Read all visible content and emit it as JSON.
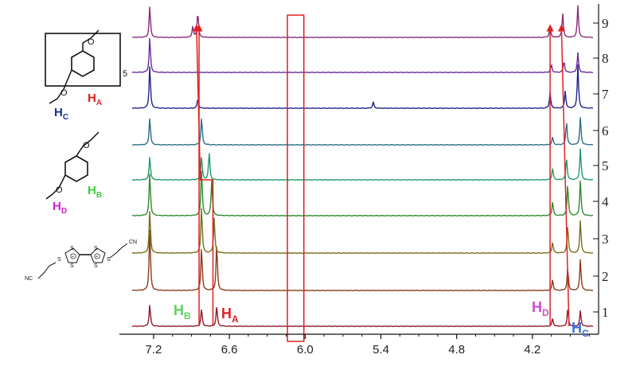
{
  "chart_data": {
    "type": "line",
    "title": "",
    "xlabel": "",
    "ylabel": "",
    "x_axis": {
      "reversed": true,
      "xlim": [
        7.37,
        3.72
      ],
      "ticks": [
        7.2,
        6.6,
        6.0,
        5.4,
        4.8,
        4.2
      ],
      "tick_labels": [
        "7.2",
        "6.6",
        "6.0",
        "5.4",
        "4.8",
        "4.2"
      ]
    },
    "grid": false,
    "trace_numbers": [
      "1",
      "2",
      "3",
      "4",
      "5",
      "6",
      "7",
      "8",
      "9"
    ],
    "series": [
      {
        "color": "#8b1a2b",
        "peaks": [
          [
            7.23,
            28
          ],
          [
            6.82,
            22
          ],
          [
            6.7,
            26
          ],
          [
            4.04,
            10
          ],
          [
            3.92,
            22
          ],
          [
            3.82,
            20
          ]
        ]
      },
      {
        "color": "#8b3a1a",
        "peaks": [
          [
            7.23,
            80
          ],
          [
            6.82,
            55
          ],
          [
            6.7,
            60
          ],
          [
            4.04,
            14
          ],
          [
            3.92,
            28
          ],
          [
            3.82,
            40
          ]
        ]
      },
      {
        "color": "#7a6d1e",
        "peaks": [
          [
            7.23,
            55
          ],
          [
            6.82,
            60
          ],
          [
            6.72,
            45
          ],
          [
            4.04,
            14
          ],
          [
            3.92,
            35
          ],
          [
            3.82,
            42
          ]
        ]
      },
      {
        "color": "#2e8a2e",
        "peaks": [
          [
            7.23,
            55
          ],
          [
            6.82,
            60
          ],
          [
            6.74,
            45
          ],
          [
            4.04,
            18
          ],
          [
            3.92,
            40
          ],
          [
            3.82,
            45
          ]
        ]
      },
      {
        "color": "#1f9a6a",
        "peaks": [
          [
            7.23,
            30
          ],
          [
            6.82,
            30
          ],
          [
            6.76,
            35
          ],
          [
            4.04,
            15
          ],
          [
            3.93,
            28
          ],
          [
            3.82,
            40
          ]
        ]
      },
      {
        "color": "#2a6e8a",
        "peaks": [
          [
            7.23,
            35
          ],
          [
            6.82,
            35
          ],
          [
            4.04,
            10
          ],
          [
            3.93,
            30
          ],
          [
            3.82,
            35
          ]
        ]
      },
      {
        "color": "#23238a",
        "peaks": [
          [
            7.23,
            55
          ],
          [
            6.85,
            12
          ],
          [
            5.46,
            8
          ],
          [
            4.06,
            20
          ],
          [
            3.94,
            22
          ],
          [
            3.84,
            55
          ]
        ]
      },
      {
        "color": "#6a2a9a",
        "peaks": [
          [
            7.23,
            45
          ],
          [
            4.05,
            10
          ],
          [
            3.95,
            15
          ],
          [
            3.84,
            25
          ]
        ]
      },
      {
        "color": "#8a2a7a",
        "peaks": [
          [
            7.23,
            40
          ],
          [
            6.89,
            14
          ],
          [
            6.85,
            33
          ],
          [
            4.06,
            15
          ],
          [
            3.96,
            30
          ],
          [
            3.84,
            40
          ]
        ]
      }
    ],
    "annotations": {
      "peak_labels": [
        {
          "main": "H",
          "sub": "B",
          "color": "#5fd15f"
        },
        {
          "main": "H",
          "sub": "A",
          "color": "#e02020"
        },
        {
          "main": "H",
          "sub": "D",
          "color": "#d04ad0"
        },
        {
          "main": "H",
          "sub": "C",
          "color": "#3a6fe0"
        }
      ],
      "highlight_box": {
        "x_range": [
          6.14,
          6.01
        ]
      },
      "tracking_lines": [
        {
          "path": [
            [
              6.84,
              1
            ],
            [
              6.84,
              9
            ]
          ],
          "arrow": true
        },
        {
          "path": [
            [
              6.73,
              1
            ],
            [
              6.73,
              5
            ],
            [
              6.83,
              5
            ],
            [
              6.86,
              9
            ]
          ],
          "arrow": true
        },
        {
          "path": [
            [
              4.06,
              1
            ],
            [
              4.06,
              9
            ]
          ],
          "arrow": true
        },
        {
          "path": [
            [
              3.91,
              1
            ],
            [
              3.97,
              9
            ]
          ],
          "arrow": true
        }
      ]
    }
  },
  "structures": {
    "pillararene": {
      "subscript": "5",
      "label_c": {
        "main": "H",
        "sub": "C",
        "color": "#1e2a9a"
      },
      "label_a": {
        "main": "H",
        "sub": "A",
        "color": "#e02020"
      }
    },
    "guest": {
      "label_b": {
        "main": "H",
        "sub": "B",
        "color": "#3ad03a"
      },
      "label_d": {
        "main": "H",
        "sub": "D",
        "color": "#d020d0"
      }
    },
    "ttf": {
      "atom_s": "S",
      "atom_nc": "NC",
      "atom_cn": "CN",
      "charge": "+"
    }
  }
}
